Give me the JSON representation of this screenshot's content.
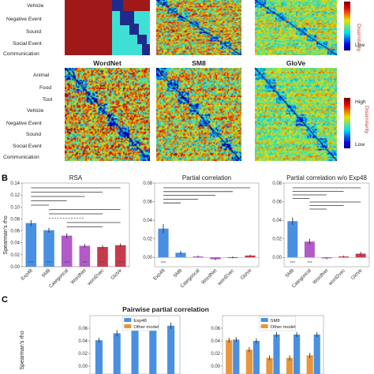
{
  "colors": {
    "matrix_low": "#2b2f9a",
    "matrix_high": "#b51d21",
    "rsa_bars": [
      "#4a90e2",
      "#4a90e2",
      "#b25ac8",
      "#b25ac8",
      "#c83a4a",
      "#c83a4a"
    ],
    "exp48": "#4a90e2",
    "other_model": "#e8963c",
    "dashed_line": "#555555"
  },
  "panel_a": {
    "top_row_labels": [
      "Vehicle",
      "Negative Event",
      "Sound",
      "Social Event",
      "Communication"
    ],
    "bottom_row_labels": [
      "Animal",
      "Food",
      "Tool",
      "Vehicle",
      "Negative Event",
      "Sound",
      "Social Event",
      "Communication"
    ],
    "model_titles": [
      "WordNet",
      "SM8",
      "GloVe"
    ],
    "colorbar_top": {
      "label": "Dissimilarity",
      "high": "",
      "low": "Low"
    },
    "colorbar_bottom": {
      "label": "Dissimilarity",
      "high": "High",
      "low": "Low"
    }
  },
  "panel_b": {
    "letter": "B",
    "ylabel": "Spearman's rho",
    "chart_data": [
      {
        "type": "bar",
        "title": "RSA",
        "categories": [
          "Exp48",
          "SM8",
          "Categorical",
          "WordNet",
          "word2vec",
          "GloVe"
        ],
        "values": [
          0.073,
          0.061,
          0.052,
          0.035,
          0.033,
          0.036
        ],
        "errors": [
          0.005,
          0.004,
          0.004,
          0.003,
          0.003,
          0.003
        ],
        "ylim": [
          0,
          0.14
        ],
        "yticks": [
          "0.00",
          "0.02",
          "0.04",
          "0.06",
          "0.08",
          "0.10",
          "0.12",
          "0.14"
        ],
        "significance_marks": [
          "***",
          "***",
          "***",
          "***",
          "***",
          "***"
        ]
      },
      {
        "type": "bar",
        "title": "Partial correlation",
        "categories": [
          "Exp48",
          "SM8",
          "Categorical",
          "WordNet",
          "word2vec",
          "GloVe"
        ],
        "values": [
          0.031,
          0.005,
          0.001,
          -0.002,
          0.0,
          0.002
        ],
        "errors": [
          0.005,
          0.002,
          0.001,
          0.001,
          0.001,
          0.001
        ],
        "ylim": [
          -0.01,
          0.08
        ],
        "yticks": [
          "0.00",
          "0.02",
          "0.04",
          "0.06",
          "0.08"
        ],
        "significance_marks": [
          "***",
          "",
          "",
          "",
          "",
          ""
        ]
      },
      {
        "type": "bar",
        "title": "Partial correlation w/o Exp48",
        "categories": [
          "SM8",
          "Categorical",
          "WordNet",
          "word2vec",
          "GloVe"
        ],
        "values": [
          0.039,
          0.017,
          -0.001,
          0.001,
          0.004
        ],
        "errors": [
          0.004,
          0.003,
          0.001,
          0.001,
          0.002
        ],
        "ylim": [
          -0.01,
          0.08
        ],
        "yticks": [
          "0.00",
          "0.02",
          "0.04",
          "0.06",
          "0.08"
        ],
        "significance_marks": [
          "***",
          "***",
          "",
          "",
          ""
        ]
      }
    ]
  },
  "panel_c": {
    "letter": "C",
    "title": "Pairwise partial correlation",
    "ylabel": "Spearman's rho",
    "chart_data": [
      {
        "type": "bar",
        "legend": [
          "Exp48",
          "Other model"
        ],
        "series": [
          {
            "name": "Exp48",
            "values": [
              0.041,
              0.052,
              0.063,
              0.065,
              0.064
            ]
          },
          {
            "name": "Other model",
            "values": [
              0,
              0,
              0,
              0,
              0
            ]
          }
        ],
        "errors": [
          0.004,
          0.005,
          0.005,
          0.005,
          0.005
        ],
        "ylim": [
          0,
          0.08
        ],
        "yticks": [
          "0.00",
          "0.02",
          "0.04",
          "0.06"
        ]
      },
      {
        "type": "bar",
        "legend": [
          "SM8",
          "Other model"
        ],
        "series": [
          {
            "name": "SM8",
            "values": [
              0.042,
              0.04,
              0.05,
              0.05,
              0.05
            ]
          },
          {
            "name": "Other model",
            "values": [
              0.041,
              0.026,
              0.013,
              0.013,
              0.017
            ]
          }
        ],
        "errors": [
          0.004,
          0.004,
          0.004,
          0.004,
          0.004
        ],
        "ylim": [
          0,
          0.08
        ],
        "yticks": [
          "0.00",
          "0.02",
          "0.04",
          "0.06"
        ]
      }
    ]
  }
}
